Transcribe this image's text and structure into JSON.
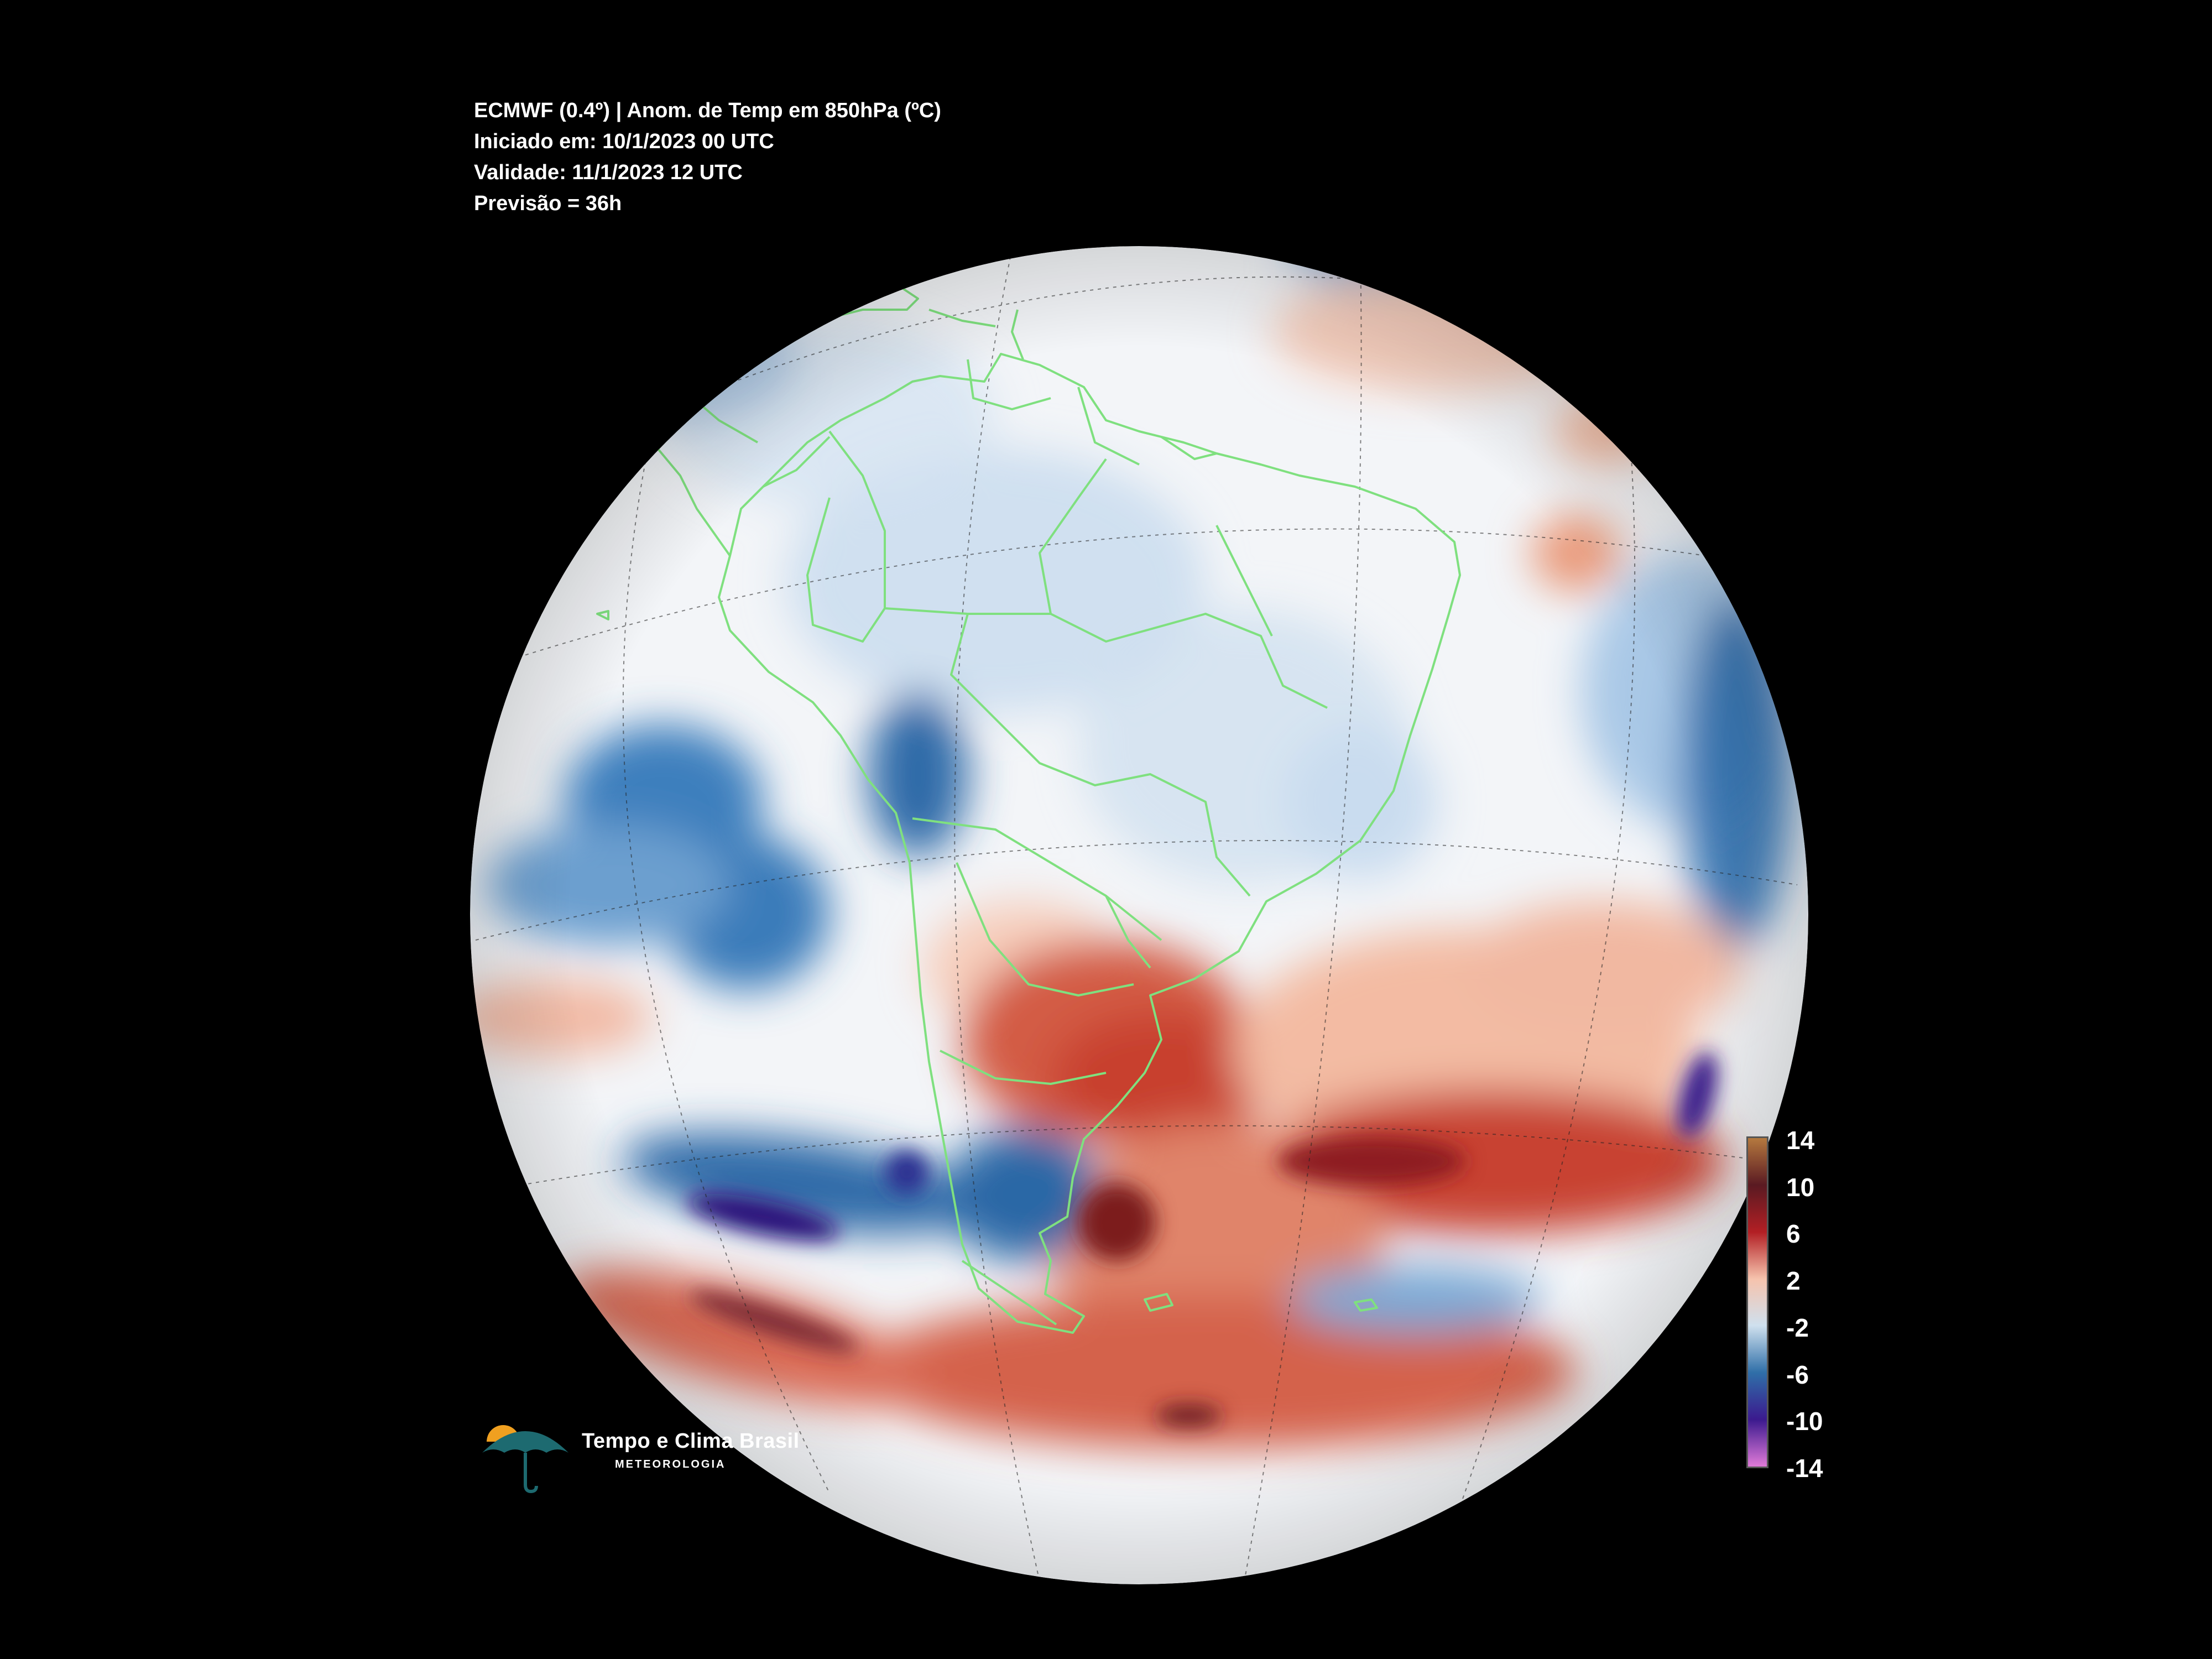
{
  "header": {
    "line1": "ECMWF (0.4º) | Anom. de Temp em 850hPa (ºC)",
    "line2": "Iniciado em: 10/1/2023 00 UTC",
    "line3": "Validade: 11/1/2023 12 UTC",
    "line4": "Previsão = 36h"
  },
  "colorbar": {
    "labels": [
      "14",
      "10",
      "6",
      "2",
      "-2",
      "-6",
      "-10",
      "-14"
    ],
    "colors": [
      "#b5793f",
      "#5a1a22",
      "#b21f24",
      "#f6c3ad",
      "#cfe0ee",
      "#2f6fa8",
      "#3b1a8e",
      "#e07ad8"
    ]
  },
  "colors": {
    "coastline": "#7fe07f",
    "background": "#000000",
    "neutral": "#f4f6f8",
    "warm": "#c0392b",
    "cold": "#2a6cb0",
    "very_cold": "#2a0f7a"
  },
  "logo": {
    "title": "Tempo e Clima Brasil",
    "subtitle": "METEOROLOGIA",
    "icon": "umbrella-sun-icon"
  }
}
